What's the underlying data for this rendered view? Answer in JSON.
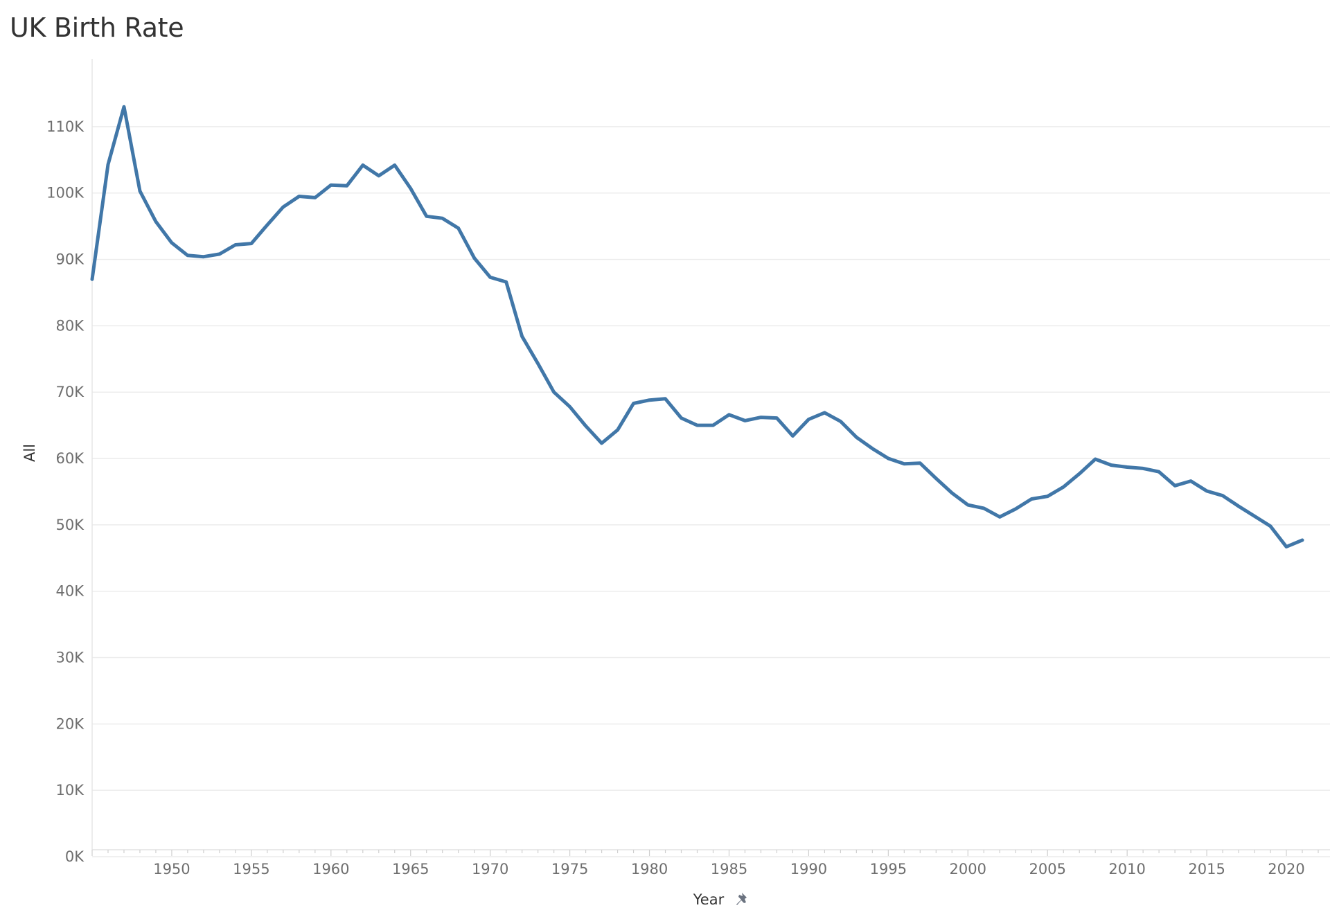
{
  "chart_data": {
    "type": "line",
    "title": "UK Birth Rate",
    "xlabel": "Year",
    "ylabel": "All",
    "xlim": [
      1945,
      2022
    ],
    "ylim": [
      0,
      115000
    ],
    "grid": true,
    "line_color": "#4177a8",
    "y_ticks": [
      {
        "value": 0,
        "label": "0K"
      },
      {
        "value": 10000,
        "label": "10K"
      },
      {
        "value": 20000,
        "label": "20K"
      },
      {
        "value": 30000,
        "label": "30K"
      },
      {
        "value": 40000,
        "label": "40K"
      },
      {
        "value": 50000,
        "label": "50K"
      },
      {
        "value": 60000,
        "label": "60K"
      },
      {
        "value": 70000,
        "label": "70K"
      },
      {
        "value": 80000,
        "label": "80K"
      },
      {
        "value": 90000,
        "label": "90K"
      },
      {
        "value": 100000,
        "label": "100K"
      },
      {
        "value": 110000,
        "label": "110K"
      }
    ],
    "x_ticks": [
      {
        "value": 1950,
        "label": "1950"
      },
      {
        "value": 1955,
        "label": "1955"
      },
      {
        "value": 1960,
        "label": "1960"
      },
      {
        "value": 1965,
        "label": "1965"
      },
      {
        "value": 1970,
        "label": "1970"
      },
      {
        "value": 1975,
        "label": "1975"
      },
      {
        "value": 1980,
        "label": "1980"
      },
      {
        "value": 1985,
        "label": "1985"
      },
      {
        "value": 1990,
        "label": "1990"
      },
      {
        "value": 1995,
        "label": "1995"
      },
      {
        "value": 2000,
        "label": "2000"
      },
      {
        "value": 2005,
        "label": "2005"
      },
      {
        "value": 2010,
        "label": "2010"
      },
      {
        "value": 2015,
        "label": "2015"
      },
      {
        "value": 2020,
        "label": "2020"
      }
    ],
    "x": [
      1945,
      1946,
      1947,
      1948,
      1949,
      1950,
      1951,
      1952,
      1953,
      1954,
      1955,
      1956,
      1957,
      1958,
      1959,
      1960,
      1961,
      1962,
      1963,
      1964,
      1965,
      1966,
      1967,
      1968,
      1969,
      1970,
      1971,
      1972,
      1973,
      1974,
      1975,
      1976,
      1977,
      1978,
      1979,
      1980,
      1981,
      1982,
      1983,
      1984,
      1985,
      1986,
      1987,
      1988,
      1989,
      1990,
      1991,
      1992,
      1993,
      1994,
      1995,
      1996,
      1997,
      1998,
      1999,
      2000,
      2001,
      2002,
      2003,
      2004,
      2005,
      2006,
      2007,
      2008,
      2009,
      2010,
      2011,
      2012,
      2013,
      2014,
      2015,
      2016,
      2017,
      2018,
      2019,
      2020,
      2021
    ],
    "series": [
      {
        "values": [
          87000,
          104300,
          113000,
          100300,
          95700,
          92500,
          90600,
          90400,
          90800,
          92200,
          92400,
          95200,
          97900,
          99500,
          99300,
          101200,
          101100,
          104200,
          102600,
          104200,
          100700,
          96500,
          96200,
          94700,
          90200,
          87300,
          86600,
          78400,
          74300,
          70000,
          67800,
          64900,
          62300,
          64300,
          68300,
          68800,
          69000,
          66100,
          65000,
          65000,
          66600,
          65700,
          66200,
          66100,
          63400,
          65900,
          66900,
          65600,
          63200,
          61500,
          60000,
          59200,
          59300,
          57000,
          54800,
          53000,
          52500,
          51200,
          52400,
          53900,
          54300,
          55700,
          57700,
          59900,
          59000,
          58700,
          58500,
          58000,
          55900,
          56600,
          55100,
          54400,
          52800,
          51300,
          49800,
          46700,
          47700
        ]
      }
    ],
    "pin_icon": "pushpin-icon"
  }
}
